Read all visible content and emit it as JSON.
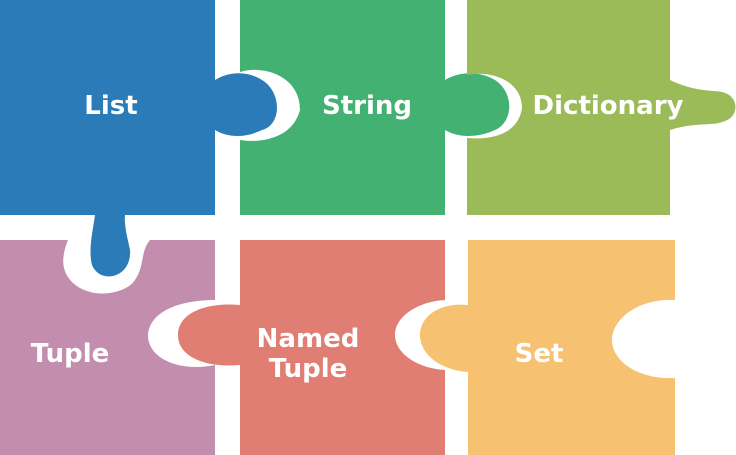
{
  "pieces": [
    {
      "label": "List",
      "color": "#2B7BB9"
    },
    {
      "label": "String",
      "color": "#43B171"
    },
    {
      "label": "Dictionary",
      "color": "#9BBB59"
    },
    {
      "label": "Tuple",
      "color": "#C38EAD"
    },
    {
      "label": "Named\nTuple",
      "color": "#E07E74"
    },
    {
      "label": "Set",
      "color": "#F6C271"
    }
  ]
}
